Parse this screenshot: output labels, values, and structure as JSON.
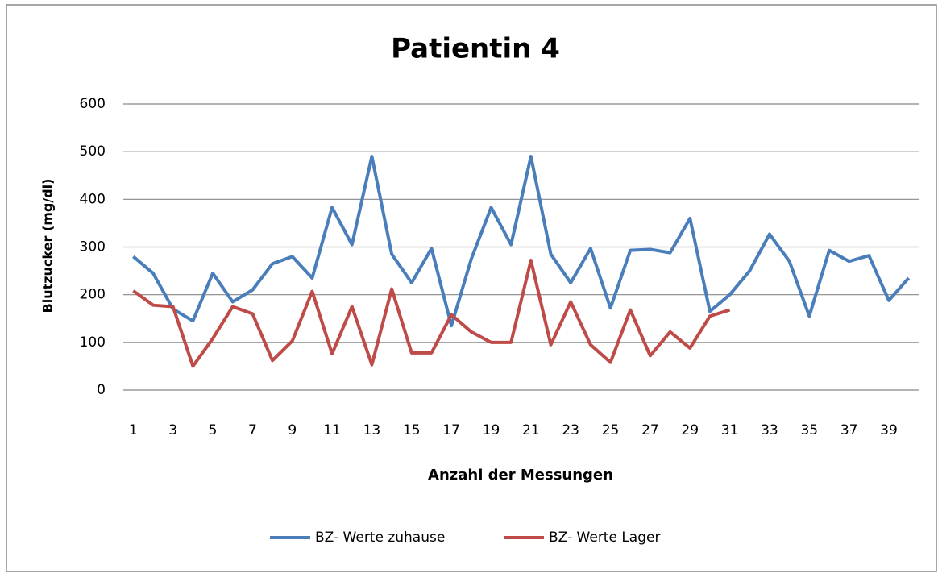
{
  "chart_data": {
    "type": "line",
    "title": "Patientin 4",
    "x_label": "Anzahl der Messungen",
    "y_label": "Blutzucker  (mg/dl)",
    "categories": [
      "1",
      null,
      "3",
      null,
      "5",
      null,
      "7",
      null,
      "9",
      null,
      "11",
      null,
      "13",
      null,
      "15",
      null,
      "17",
      null,
      "19",
      null,
      "21",
      null,
      "23",
      null,
      "25",
      null,
      "27",
      null,
      "29",
      null,
      "31",
      null,
      "33",
      null,
      "35",
      null,
      "37",
      null,
      "39",
      null
    ],
    "series": [
      {
        "name": "BZ- Werte zuhause",
        "color": "#4a7ebb",
        "values": [
          280,
          245,
          170,
          145,
          245,
          185,
          210,
          265,
          280,
          235,
          383,
          305,
          490,
          285,
          225,
          297,
          135,
          275,
          383,
          305,
          490,
          285,
          225,
          297,
          172,
          293,
          295,
          288,
          360,
          165,
          200,
          250,
          327,
          270,
          155,
          293,
          270,
          282,
          188,
          235
        ]
      },
      {
        "name": "BZ- Werte Lager",
        "color": "#be4b48",
        "values": [
          208,
          178,
          175,
          50,
          108,
          175,
          160,
          62,
          103,
          207,
          76,
          175,
          53,
          212,
          78,
          78,
          158,
          122,
          100,
          100,
          272,
          95,
          185,
          95,
          58,
          168,
          72,
          122,
          88,
          155,
          168,
          null,
          null,
          null,
          null,
          null,
          null,
          null,
          null,
          null
        ]
      }
    ],
    "ylim": [
      0,
      600
    ],
    "yticks": [
      0,
      100,
      200,
      300,
      400,
      500,
      600
    ],
    "grid": true,
    "legend": "bottom"
  }
}
